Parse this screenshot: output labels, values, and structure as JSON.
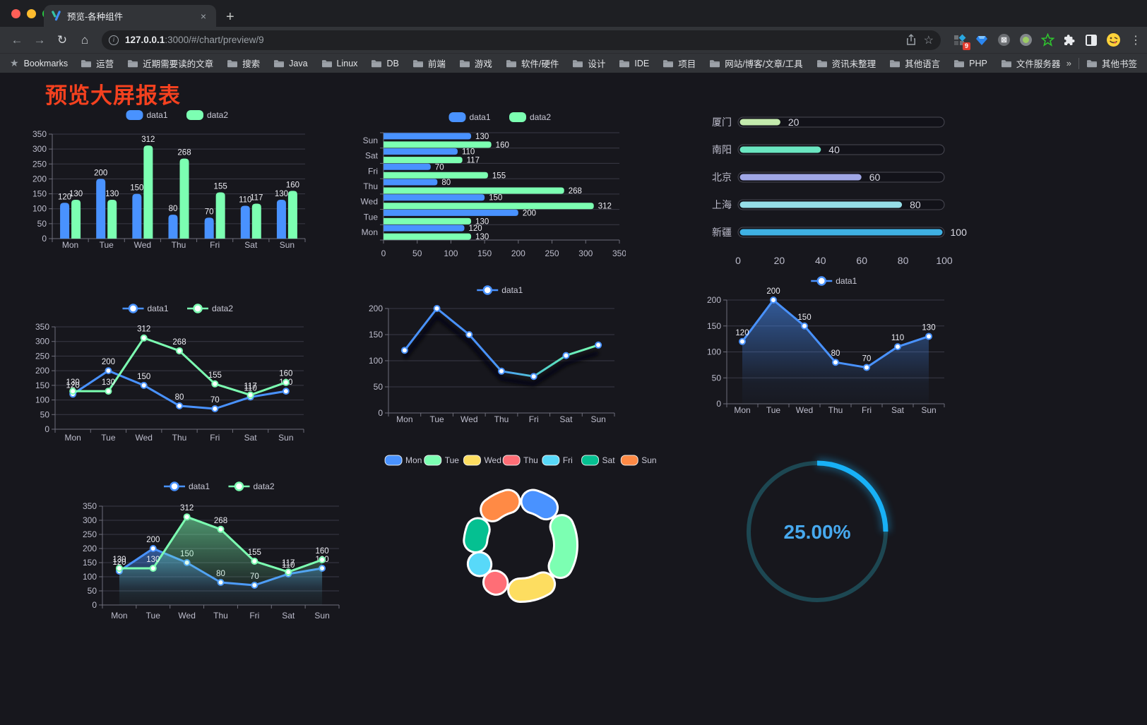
{
  "browser": {
    "tab": {
      "title": "预览-各种组件"
    },
    "icons": {
      "close": "×",
      "new_tab": "+",
      "back": "←",
      "forward": "→",
      "reload": "↻",
      "home": "⌂",
      "info": "i",
      "star": "☆",
      "menu": "⋮",
      "bookmarks_star": "★",
      "overflow": "»"
    },
    "url_host": "127.0.0.1",
    "url_rest": ":3000/#/chart/preview/9",
    "extension_badge": "9"
  },
  "bookmarks": {
    "label": "Bookmarks",
    "items": [
      "运营",
      "近期需要读的文章",
      "搜索",
      "Java",
      "Linux",
      "DB",
      "前端",
      "游戏",
      "软件/硬件",
      "设计",
      "IDE",
      "项目",
      "网站/博客/文章/工具",
      "资讯未整理",
      "其他语言",
      "PHP",
      "文件服务器"
    ],
    "other": "其他书签"
  },
  "page": {
    "title": "预览大屏报表"
  },
  "chart_data": [
    {
      "id": "bar-vertical",
      "type": "bar",
      "orientation": "vertical",
      "categories": [
        "Mon",
        "Tue",
        "Wed",
        "Thu",
        "Fri",
        "Sat",
        "Sun"
      ],
      "series": [
        {
          "name": "data1",
          "color": "#4992ff",
          "values": [
            120,
            200,
            150,
            80,
            70,
            110,
            130
          ]
        },
        {
          "name": "data2",
          "color": "#7cffb2",
          "values": [
            130,
            130,
            312,
            268,
            155,
            117,
            160
          ]
        }
      ],
      "ylim": [
        0,
        350
      ],
      "ytick_step": 50,
      "legend_position": "top",
      "show_labels": true
    },
    {
      "id": "bar-horizontal",
      "type": "bar",
      "orientation": "horizontal",
      "categories": [
        "Mon",
        "Tue",
        "Wed",
        "Thu",
        "Fri",
        "Sat",
        "Sun"
      ],
      "series": [
        {
          "name": "data1",
          "color": "#4992ff",
          "values": [
            120,
            200,
            150,
            80,
            70,
            110,
            130
          ]
        },
        {
          "name": "data2",
          "color": "#7cffb2",
          "values": [
            130,
            130,
            312,
            268,
            155,
            117,
            160
          ]
        }
      ],
      "xlim": [
        0,
        350
      ],
      "xtick_step": 50,
      "legend_position": "top",
      "show_labels": true
    },
    {
      "id": "capsule-progress",
      "type": "bar",
      "subtype": "capsule",
      "categories": [
        "厦门",
        "南阳",
        "北京",
        "上海",
        "新疆"
      ],
      "values": [
        20,
        40,
        60,
        80,
        100
      ],
      "colors": [
        "#c4ebad",
        "#6be6c1",
        "#a0a7e6",
        "#96dee8",
        "#3fb1e3"
      ],
      "xlim": [
        0,
        100
      ],
      "xticks": [
        0,
        20,
        40,
        60,
        80,
        100
      ],
      "show_labels": true
    },
    {
      "id": "line-two-series",
      "type": "line",
      "categories": [
        "Mon",
        "Tue",
        "Wed",
        "Thu",
        "Fri",
        "Sat",
        "Sun"
      ],
      "series": [
        {
          "name": "data1",
          "color": "#4992ff",
          "values": [
            120,
            200,
            150,
            80,
            70,
            110,
            130
          ]
        },
        {
          "name": "data2",
          "color": "#7cffb2",
          "values": [
            130,
            130,
            312,
            268,
            155,
            117,
            160
          ]
        }
      ],
      "ylim": [
        0,
        350
      ],
      "ytick_step": 50,
      "legend_position": "top",
      "show_labels": true
    },
    {
      "id": "line-gradient-shadow",
      "type": "line",
      "categories": [
        "Mon",
        "Tue",
        "Wed",
        "Thu",
        "Fri",
        "Sat",
        "Sun"
      ],
      "series": [
        {
          "name": "data1",
          "color": "#4992ff",
          "color_end": "#7cffb2",
          "values": [
            120,
            200,
            150,
            80,
            70,
            110,
            130
          ]
        }
      ],
      "ylim": [
        0,
        200
      ],
      "ytick_step": 50,
      "legend_position": "top",
      "show_labels": false,
      "shadow": true
    },
    {
      "id": "area-single",
      "type": "area",
      "categories": [
        "Mon",
        "Tue",
        "Wed",
        "Thu",
        "Fri",
        "Sat",
        "Sun"
      ],
      "series": [
        {
          "name": "data1",
          "color": "#4992ff",
          "values": [
            120,
            200,
            150,
            80,
            70,
            110,
            130
          ]
        }
      ],
      "ylim": [
        0,
        200
      ],
      "ytick_step": 50,
      "legend_position": "top",
      "show_labels": true
    },
    {
      "id": "area-two-series",
      "type": "area",
      "categories": [
        "Mon",
        "Tue",
        "Wed",
        "Thu",
        "Fri",
        "Sat",
        "Sun"
      ],
      "series": [
        {
          "name": "data1",
          "color": "#4992ff",
          "values": [
            120,
            200,
            150,
            80,
            70,
            110,
            130
          ]
        },
        {
          "name": "data2",
          "color": "#7cffb2",
          "values": [
            130,
            130,
            312,
            268,
            155,
            117,
            160
          ]
        }
      ],
      "ylim": [
        0,
        350
      ],
      "ytick_step": 50,
      "legend_position": "top",
      "show_labels": true
    },
    {
      "id": "donut-pie",
      "type": "pie",
      "donut": true,
      "categories": [
        "Mon",
        "Tue",
        "Wed",
        "Thu",
        "Fri",
        "Sat",
        "Sun"
      ],
      "values": [
        120,
        200,
        150,
        80,
        70,
        110,
        130
      ],
      "colors": [
        "#4992ff",
        "#7cffb2",
        "#fddd60",
        "#ff6e76",
        "#58d9f9",
        "#05c091",
        "#ff8a45"
      ],
      "legend_position": "top"
    },
    {
      "id": "gauge-progress",
      "type": "gauge",
      "value": 25,
      "max": 100,
      "label": "25.00%",
      "color": "#18b1f7",
      "track_color": "#1d4752",
      "text_color": "#47a9ef"
    }
  ],
  "theme": {
    "background": "#17171d",
    "grid_line": "#3a3a46",
    "axis_line": "#6e6e7a",
    "tick_label": "#bdbdcc",
    "data_label": "#ececf2",
    "legend_label": "#c9c9d6",
    "title_color": "#f4411f"
  }
}
